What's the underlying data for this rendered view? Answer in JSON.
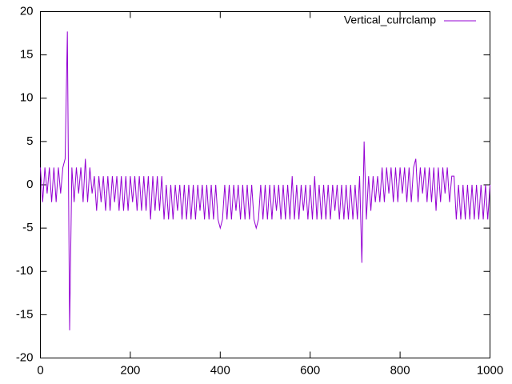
{
  "chart_data": {
    "type": "line",
    "x": [
      0,
      5,
      10,
      15,
      20,
      25,
      30,
      35,
      40,
      45,
      50,
      55,
      60,
      65,
      70,
      75,
      80,
      85,
      90,
      95,
      100,
      105,
      110,
      115,
      120,
      125,
      130,
      135,
      140,
      145,
      150,
      155,
      160,
      165,
      170,
      175,
      180,
      185,
      190,
      195,
      200,
      205,
      210,
      215,
      220,
      225,
      230,
      235,
      240,
      245,
      250,
      255,
      260,
      265,
      270,
      275,
      280,
      285,
      290,
      295,
      300,
      305,
      310,
      315,
      320,
      325,
      330,
      335,
      340,
      345,
      350,
      355,
      360,
      365,
      370,
      375,
      380,
      385,
      390,
      395,
      400,
      405,
      410,
      415,
      420,
      425,
      430,
      435,
      440,
      445,
      450,
      455,
      460,
      465,
      470,
      475,
      480,
      485,
      490,
      495,
      500,
      505,
      510,
      515,
      520,
      525,
      530,
      535,
      540,
      545,
      550,
      555,
      560,
      565,
      570,
      575,
      580,
      585,
      590,
      595,
      600,
      605,
      610,
      615,
      620,
      625,
      630,
      635,
      640,
      645,
      650,
      655,
      660,
      665,
      670,
      675,
      680,
      685,
      690,
      695,
      700,
      705,
      710,
      715,
      720,
      725,
      730,
      735,
      740,
      745,
      750,
      755,
      760,
      765,
      770,
      775,
      780,
      785,
      790,
      795,
      800,
      805,
      810,
      815,
      820,
      825,
      830,
      835,
      840,
      845,
      850,
      855,
      860,
      865,
      870,
      875,
      880,
      885,
      890,
      895,
      900,
      905,
      910,
      915,
      920,
      925,
      930,
      935,
      940,
      945,
      950,
      955,
      960,
      965,
      970,
      975,
      980,
      985,
      990,
      995,
      1000
    ],
    "series": [
      {
        "name": "Vertical_currclamp",
        "color": "#9400d3",
        "values": [
          2,
          -2,
          2,
          -1,
          2,
          -2,
          2,
          -2,
          2,
          -1,
          2,
          3,
          17.7,
          -16.8,
          2,
          -2,
          2,
          -1,
          2,
          -2,
          3,
          -2,
          2,
          -1,
          1,
          -3,
          1,
          -2,
          1,
          -3,
          1,
          -3,
          1,
          -2,
          1,
          -3,
          1,
          -3,
          1,
          -3,
          1,
          -2,
          1,
          -3,
          1,
          -3,
          1,
          -3,
          1,
          -4,
          1,
          -3,
          1,
          -3,
          1,
          -4,
          0,
          -4,
          0,
          -4,
          0,
          -3,
          0,
          -4,
          0,
          -4,
          0,
          -4,
          0,
          -4,
          0,
          -3,
          0,
          -4,
          0,
          -4,
          0,
          -4,
          0,
          -4,
          -5,
          -4,
          0,
          -4,
          0,
          -4,
          0,
          -3,
          0,
          -4,
          0,
          -4,
          0,
          -4,
          0,
          -4,
          -5,
          -4,
          0,
          -4,
          0,
          -4,
          0,
          -4,
          0,
          -3,
          0,
          -4,
          0,
          -4,
          0,
          -4,
          1,
          -4,
          0,
          -4,
          0,
          -3,
          0,
          -4,
          0,
          -4,
          1,
          -4,
          0,
          -4,
          0,
          -4,
          0,
          -4,
          0,
          -3,
          0,
          -4,
          0,
          -4,
          0,
          -4,
          0,
          -4,
          0,
          -4,
          1,
          -9,
          5,
          -4,
          1,
          -3,
          1,
          -2,
          1,
          -2,
          2,
          -2,
          2,
          -1,
          2,
          -2,
          2,
          -2,
          2,
          -1,
          2,
          -2,
          2,
          -2,
          2,
          3,
          -2,
          2,
          -1,
          2,
          -2,
          2,
          -2,
          2,
          -3,
          2,
          -2,
          2,
          -1,
          2,
          -2,
          1,
          1,
          -4,
          0,
          -4,
          0,
          -4,
          0,
          -4,
          0,
          -4,
          0,
          -4,
          0,
          -4,
          0,
          -4,
          0
        ]
      }
    ],
    "xlim": [
      0,
      1000
    ],
    "xticks": [
      0,
      200,
      400,
      600,
      800,
      1000
    ],
    "ylim": [
      -20,
      20
    ],
    "yticks": [
      -20,
      -15,
      -10,
      -5,
      0,
      5,
      10,
      15,
      20
    ],
    "legend": "top-right"
  }
}
